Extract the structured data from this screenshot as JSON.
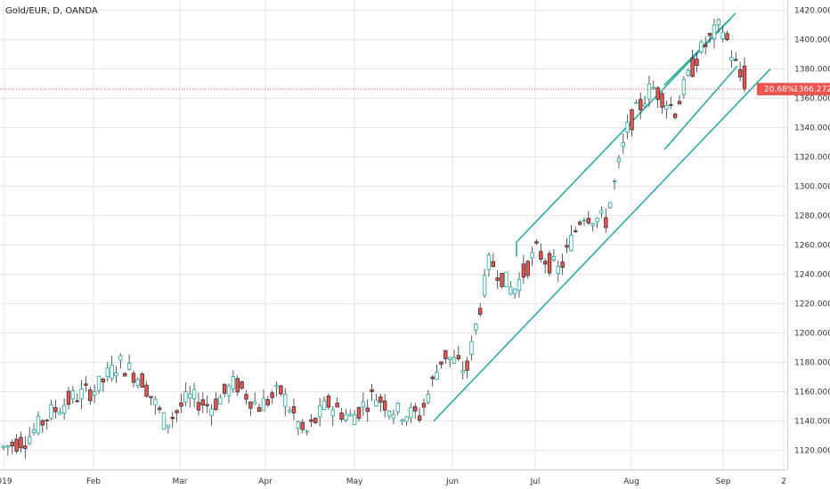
{
  "header": {
    "symbol_title": "Gold/EUR, D, OANDA"
  },
  "price_tag": {
    "change_pct": "20.68%",
    "last_price": "1366.272"
  },
  "colors": {
    "up": "#26a69a",
    "down": "#ef5350",
    "channel": "#26a69a",
    "grid": "#e6e6e6",
    "price_line": "#ef5350"
  },
  "chart_data": {
    "type": "candlestick",
    "title": "Gold/EUR, D, OANDA",
    "yticks": [
      "1120.000",
      "1140.000",
      "1160.000",
      "1180.000",
      "1200.000",
      "1220.000",
      "1240.000",
      "1260.000",
      "1280.000",
      "1300.000",
      "1320.000",
      "1340.000",
      "1360.000",
      "1380.000",
      "1400.000",
      "1420.000"
    ],
    "xticks": [
      "019",
      "Feb",
      "Mar",
      "Apr",
      "May",
      "Jun",
      "Jul",
      "Aug",
      "Sep",
      "2"
    ],
    "ylim": [
      1107,
      1427
    ],
    "last_price": 1366.272,
    "candles_sample": [
      {
        "o": 1130,
        "h": 1138,
        "l": 1118,
        "c": 1122
      },
      {
        "o": 1122,
        "h": 1132,
        "l": 1116,
        "c": 1128
      },
      {
        "o": 1128,
        "h": 1150,
        "l": 1124,
        "c": 1145
      },
      {
        "o": 1145,
        "h": 1160,
        "l": 1138,
        "c": 1156
      },
      {
        "o": 1156,
        "h": 1168,
        "l": 1150,
        "c": 1162
      },
      {
        "o": 1162,
        "h": 1186,
        "l": 1158,
        "c": 1180
      },
      {
        "o": 1180,
        "h": 1182,
        "l": 1162,
        "c": 1168
      },
      {
        "o": 1168,
        "h": 1170,
        "l": 1132,
        "c": 1138
      },
      {
        "o": 1138,
        "h": 1162,
        "l": 1134,
        "c": 1156
      },
      {
        "o": 1156,
        "h": 1160,
        "l": 1146,
        "c": 1150
      },
      {
        "o": 1150,
        "h": 1170,
        "l": 1146,
        "c": 1166
      },
      {
        "o": 1166,
        "h": 1168,
        "l": 1146,
        "c": 1150
      },
      {
        "o": 1150,
        "h": 1164,
        "l": 1144,
        "c": 1160
      },
      {
        "o": 1160,
        "h": 1162,
        "l": 1124,
        "c": 1130
      },
      {
        "o": 1130,
        "h": 1158,
        "l": 1128,
        "c": 1152
      },
      {
        "o": 1152,
        "h": 1156,
        "l": 1136,
        "c": 1142
      },
      {
        "o": 1142,
        "h": 1164,
        "l": 1138,
        "c": 1158
      },
      {
        "o": 1158,
        "h": 1160,
        "l": 1142,
        "c": 1146
      },
      {
        "o": 1146,
        "h": 1150,
        "l": 1140,
        "c": 1144
      },
      {
        "o": 1144,
        "h": 1190,
        "l": 1140,
        "c": 1186
      },
      {
        "o": 1186,
        "h": 1188,
        "l": 1168,
        "c": 1174
      },
      {
        "o": 1174,
        "h": 1262,
        "l": 1170,
        "c": 1250
      },
      {
        "o": 1250,
        "h": 1254,
        "l": 1222,
        "c": 1228
      },
      {
        "o": 1228,
        "h": 1266,
        "l": 1226,
        "c": 1256
      },
      {
        "o": 1256,
        "h": 1258,
        "l": 1238,
        "c": 1242
      },
      {
        "o": 1242,
        "h": 1288,
        "l": 1238,
        "c": 1282
      },
      {
        "o": 1282,
        "h": 1290,
        "l": 1270,
        "c": 1276
      },
      {
        "o": 1276,
        "h": 1348,
        "l": 1272,
        "c": 1342
      },
      {
        "o": 1342,
        "h": 1372,
        "l": 1326,
        "c": 1368
      },
      {
        "o": 1368,
        "h": 1370,
        "l": 1346,
        "c": 1352
      },
      {
        "o": 1352,
        "h": 1398,
        "l": 1348,
        "c": 1390
      },
      {
        "o": 1390,
        "h": 1414,
        "l": 1384,
        "c": 1410
      },
      {
        "o": 1410,
        "h": 1412,
        "l": 1360,
        "c": 1366.272
      }
    ]
  }
}
